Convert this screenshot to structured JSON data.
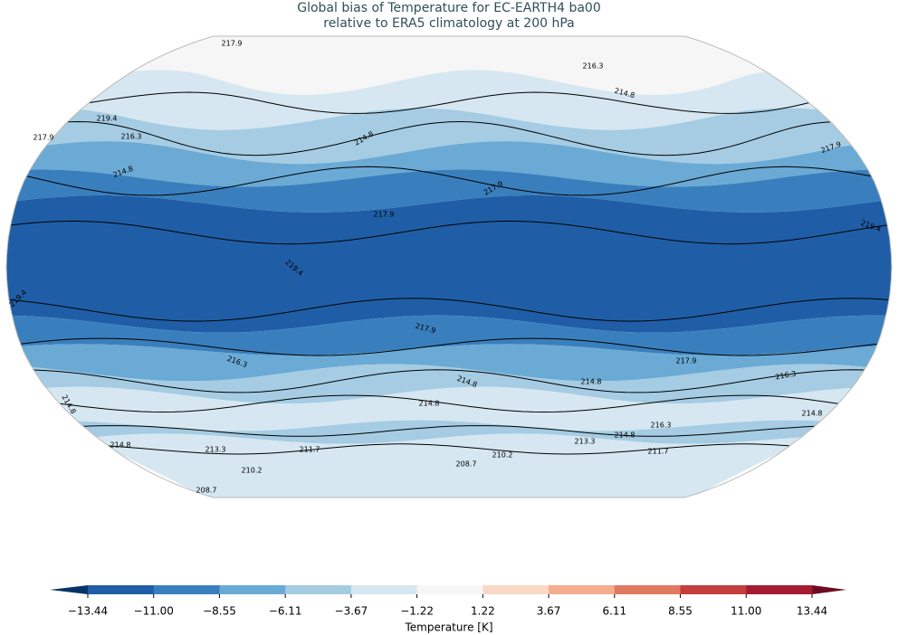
{
  "title": [
    "Global bias of Temperature for EC-EARTH4 ba00",
    "relative to ERA5 climatology at 200 hPa"
  ],
  "contour_labels": [
    217.9,
    216.3,
    219.4,
    214.8,
    217.9,
    216.3,
    214.8,
    214.8,
    217.9,
    217.9,
    217.9,
    219.4,
    219.4,
    219.4,
    217.9,
    216.3,
    214.8,
    214.8,
    217.9,
    216.3,
    214.8,
    214.8,
    214.8,
    216.3,
    214.8,
    214.8,
    213.3,
    213.3,
    211.7,
    210.2,
    211.7,
    208.7,
    210.2,
    208.7
  ],
  "colorbar": {
    "label": "Temperature [K]",
    "ticks": [
      {
        "value": -13.44,
        "label": "−13.44"
      },
      {
        "value": -11.0,
        "label": "−11.00"
      },
      {
        "value": -8.55,
        "label": "−8.55"
      },
      {
        "value": -6.11,
        "label": "−6.11"
      },
      {
        "value": -3.67,
        "label": "−3.67"
      },
      {
        "value": -1.22,
        "label": "−1.22"
      },
      1.22,
      3.67,
      6.11,
      8.55,
      {
        "value": 11.0,
        "label": "11.00"
      },
      13.44
    ],
    "colors": [
      "#1f5ea6",
      "#3a7fbd",
      "#6aaad5",
      "#a5cce3",
      "#d6e7f1",
      "#f6f6f6",
      "#fbd8c6",
      "#f4ad8d",
      "#e07a62",
      "#c53e3e",
      "#a51c31"
    ],
    "extend_colors": [
      "#073466",
      "#6d0b21"
    ]
  }
}
